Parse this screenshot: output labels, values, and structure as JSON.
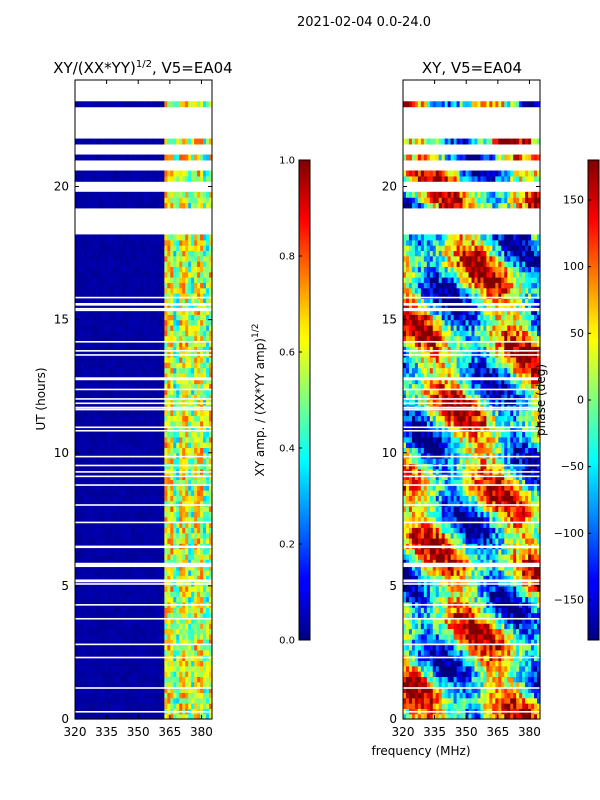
{
  "figure": {
    "suptitle": "2021-02-04 0.0-24.0",
    "shared_xlabel": "frequency (MHz)"
  },
  "chart_data": [
    {
      "type": "heatmap",
      "title_main": "XY/(XX*YY)",
      "title_sup": "1/2",
      "title_rest": ", V5=EA04",
      "xlabel": "frequency (MHz)",
      "ylabel": "UT (hours)",
      "xlim": [
        320,
        385
      ],
      "ylim": [
        0,
        24
      ],
      "x_ticks": [
        320,
        335,
        350,
        365,
        380
      ],
      "y_ticks": [
        0,
        5,
        10,
        15,
        20
      ],
      "colorbar": {
        "label_main": "XY amp. / (XX*YY amp)",
        "label_sup": "1/2",
        "range": [
          0.0,
          1.0
        ],
        "ticks": [
          "0.0",
          "0.2",
          "0.4",
          "0.6",
          "0.8",
          "1.0"
        ],
        "colormap": "jet"
      },
      "description_values": {
        "background_level": 0.02,
        "band_start_mhz": 362,
        "band_level_range": [
          0.3,
          0.75
        ]
      },
      "missing_ut_bands": [
        [
          18.2,
          19.1
        ],
        [
          19.8,
          20.2
        ],
        [
          20.7,
          21.0
        ],
        [
          21.3,
          21.6
        ],
        [
          21.8,
          23.0
        ],
        [
          23.3,
          23.9
        ]
      ]
    },
    {
      "type": "heatmap",
      "title": "XY, V5=EA04",
      "xlabel": "frequency (MHz)",
      "ylabel": "",
      "xlim": [
        320,
        385
      ],
      "ylim": [
        0,
        24
      ],
      "x_ticks": [
        320,
        335,
        350,
        365,
        380
      ],
      "y_ticks": [
        0,
        5,
        10,
        15,
        20
      ],
      "colorbar": {
        "label": "phase (deg)",
        "range": [
          -180,
          180
        ],
        "ticks": [
          "−150",
          "−100",
          "−50",
          "0",
          "50",
          "100",
          "150"
        ],
        "tick_values": [
          -150,
          -100,
          -50,
          0,
          50,
          100,
          150
        ],
        "colormap": "jet"
      },
      "missing_ut_bands": [
        [
          18.2,
          19.1
        ],
        [
          19.8,
          20.2
        ],
        [
          20.7,
          21.0
        ],
        [
          21.3,
          21.6
        ],
        [
          21.8,
          23.0
        ],
        [
          23.3,
          23.9
        ]
      ]
    }
  ]
}
